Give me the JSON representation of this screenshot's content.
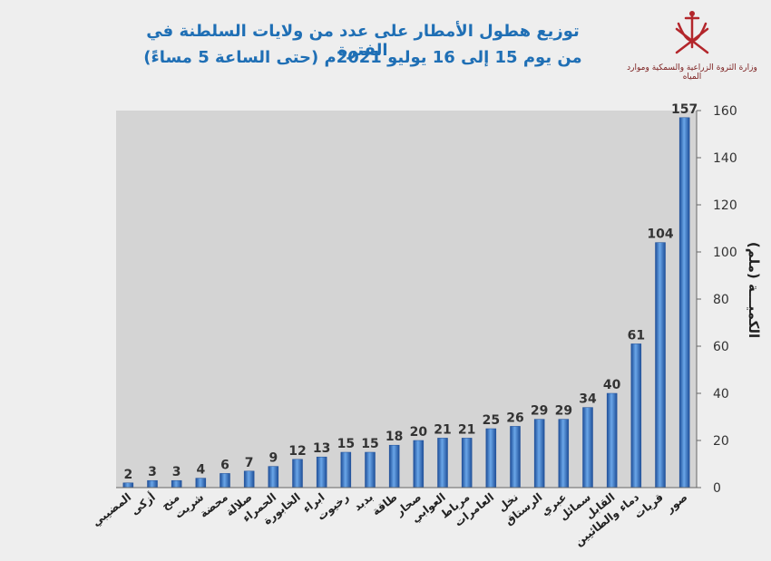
{
  "header": {
    "title_line1": "توزيع هطول الأمطار على عدد من ولايات السلطنة في الفترة",
    "title_line2": "من يوم 15 إلى 16 يوليو 2021م (حتى الساعة 5 مساءً)",
    "ministry": "وزارة الثروة الزراعية والسمكية وموارد المياه"
  },
  "colors": {
    "bar": "#3f7fcf",
    "plot_bg": "#d4d4d4",
    "title": "#1f6fb5",
    "logo": "#b3262b"
  },
  "chart_data": {
    "type": "bar",
    "categories": [
      "المضيبي",
      "أزكى",
      "منح",
      "شريت",
      "محضة",
      "صلالة",
      "الحمراء",
      "الخابورة",
      "ابراء",
      "رخيوت",
      "بدبد",
      "طاقة",
      "صحار",
      "العوابي",
      "مرباط",
      "العامرات",
      "نخل",
      "الرستاق",
      "عبري",
      "سمائل",
      "القابل",
      "دماء والطائيين",
      "قريات",
      "صور"
    ],
    "values": [
      2,
      3,
      3,
      4,
      6,
      7,
      9,
      12,
      13,
      15,
      15,
      18,
      20,
      21,
      21,
      25,
      26,
      29,
      29,
      34,
      40,
      61,
      104,
      157
    ],
    "ylabel": "الكميـــة (ملم)",
    "yticks": [
      "0",
      "20",
      "40",
      "60",
      "80",
      "100",
      "120",
      "140",
      "160"
    ],
    "ylim": [
      0,
      160
    ],
    "axis_side": "right",
    "grid": false,
    "data_labels": true
  }
}
